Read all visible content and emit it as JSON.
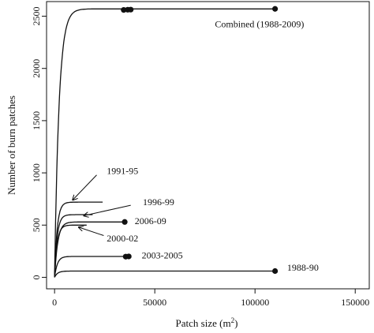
{
  "chart_data": {
    "type": "line",
    "title": "",
    "xlabel": "Patch size (m",
    "xlabel_sup": "2",
    "xlabel_end": ")",
    "ylabel": "Number of burn patches",
    "xlim": [
      0,
      150000
    ],
    "ylim": [
      0,
      2600
    ],
    "x_ticks": [
      0,
      50000,
      100000,
      150000
    ],
    "x_tick_labels": [
      "0",
      "50000",
      "100000",
      "150000"
    ],
    "y_ticks": [
      0,
      500,
      1000,
      1500,
      2000,
      2500
    ],
    "y_tick_labels": [
      "0",
      "500",
      "1000",
      "1500",
      "2000",
      "2500"
    ],
    "grid": false,
    "series": [
      {
        "name": "Combined (1988-2009)",
        "max_x": 110000,
        "max_y": 2570,
        "k": 2200,
        "endpoint": true,
        "extra_points": [
          [
            34500,
            2560
          ],
          [
            36500,
            2562
          ],
          [
            38000,
            2563
          ]
        ]
      },
      {
        "name": "1991-95",
        "max_x": 24000,
        "max_y": 720,
        "k": 1300,
        "endpoint": false,
        "extra_points": []
      },
      {
        "name": "1996-99",
        "max_x": 19000,
        "max_y": 600,
        "k": 1300,
        "endpoint": false,
        "extra_points": []
      },
      {
        "name": "2006-09",
        "max_x": 35000,
        "max_y": 530,
        "k": 1600,
        "endpoint": true,
        "extra_points": []
      },
      {
        "name": "2000-02",
        "max_x": 16000,
        "max_y": 500,
        "k": 1300,
        "endpoint": false,
        "extra_points": []
      },
      {
        "name": "2003-2005",
        "max_x": 37000,
        "max_y": 200,
        "k": 1400,
        "endpoint": true,
        "extra_points": [
          [
            35500,
            198
          ]
        ]
      },
      {
        "name": "1988-90",
        "max_x": 110000,
        "max_y": 60,
        "k": 1500,
        "endpoint": true,
        "extra_points": []
      }
    ],
    "annotations": [
      {
        "series": "Combined (1988-2009)",
        "text": "Combined  (1988-2009)",
        "text_x": 80000,
        "text_y": 2415,
        "arrow": false
      },
      {
        "series": "1991-95",
        "text": "1991-95",
        "text_x": 26000,
        "text_y": 1010,
        "arrow": true,
        "arrow_from": [
          21000,
          980
        ],
        "arrow_to": [
          9000,
          740
        ]
      },
      {
        "series": "1996-99",
        "text": "1996-99",
        "text_x": 44000,
        "text_y": 710,
        "arrow": true,
        "arrow_from": [
          38000,
          690
        ],
        "arrow_to": [
          14500,
          590
        ]
      },
      {
        "series": "2006-09",
        "text": "2006-09",
        "text_x": 40000,
        "text_y": 530,
        "arrow": false
      },
      {
        "series": "2000-02",
        "text": "2000-02",
        "text_x": 26000,
        "text_y": 365,
        "arrow": true,
        "arrow_from": [
          24500,
          400
        ],
        "arrow_to": [
          12000,
          480
        ]
      },
      {
        "series": "2003-2005",
        "text": "2003-2005",
        "text_x": 43500,
        "text_y": 200,
        "arrow": false
      },
      {
        "series": "1988-90",
        "text": "1988-90",
        "text_x": 116000,
        "text_y": 85,
        "arrow": false
      }
    ]
  }
}
